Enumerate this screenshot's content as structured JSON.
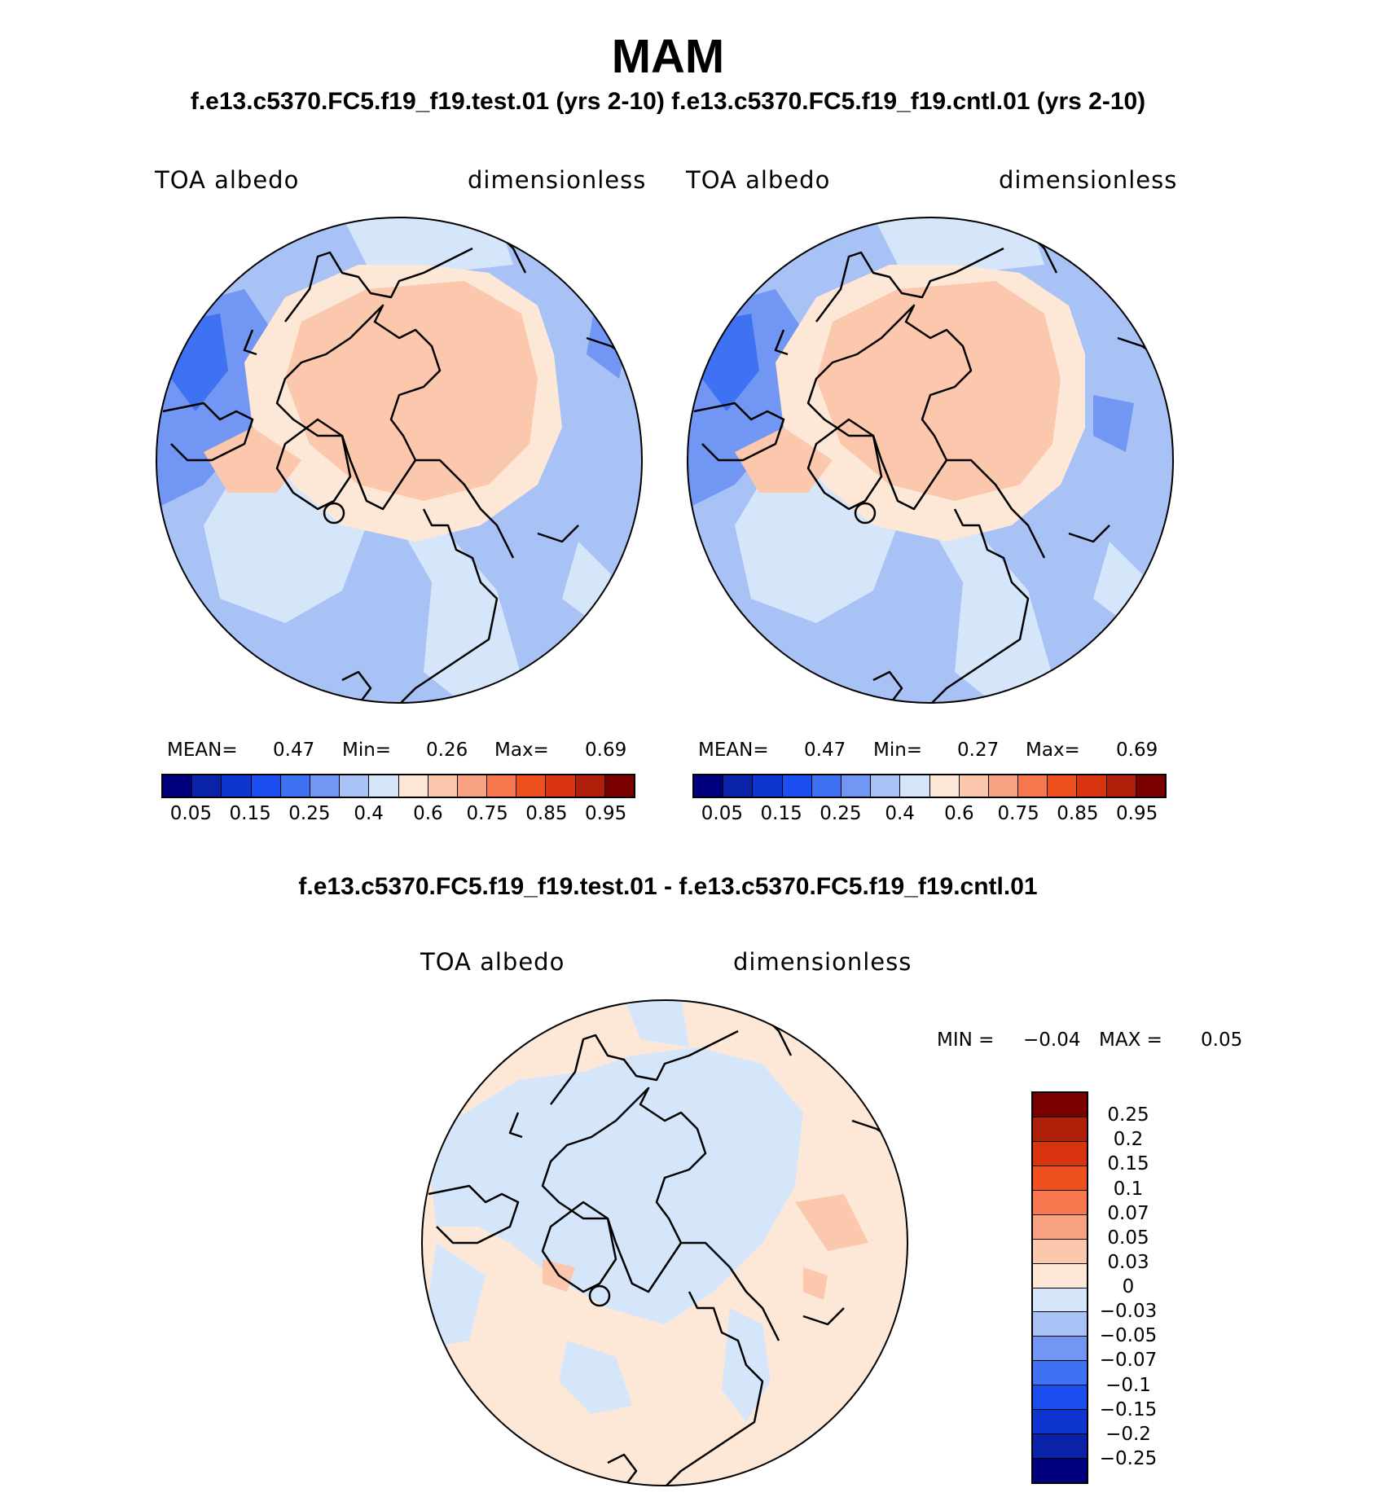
{
  "figure": {
    "season": "MAM",
    "subtitle": "f.e13.c5370.FC5.f19_f19.test.01 (yrs 2-10) f.e13.c5370.FC5.f19_f19.cntl.01 (yrs 2-10)",
    "diff_title": "f.e13.c5370.FC5.f19_f19.test.01 - f.e13.c5370.FC5.f19_f19.cntl.01"
  },
  "panels": [
    {
      "variable": "TOA albedo",
      "units": "dimensionless",
      "mean_label": "MEAN=",
      "mean": "0.47",
      "min_label": "Min=",
      "min": "0.26",
      "max_label": "Max=",
      "max": "0.69"
    },
    {
      "variable": "TOA albedo",
      "units": "dimensionless",
      "mean_label": "MEAN=",
      "mean": "0.47",
      "min_label": "Min=",
      "min": "0.27",
      "max_label": "Max=",
      "max": "0.69"
    }
  ],
  "diff_panel": {
    "variable": "TOA albedo",
    "units": "dimensionless",
    "min_label": "MIN =",
    "min": "−0.04",
    "max_label": "MAX =",
    "max": "0.05"
  },
  "colorbar_main": {
    "ticks": [
      "0.05",
      "0.15",
      "0.25",
      "0.4",
      "0.6",
      "0.75",
      "0.85",
      "0.95"
    ],
    "colors": [
      "#00007f",
      "#0a22a8",
      "#0f35d0",
      "#1a4ef0",
      "#3f72f2",
      "#7196f3",
      "#a8c2f5",
      "#d6e6fa",
      "#fde8d8",
      "#fbc7ad",
      "#f9a283",
      "#f7784f",
      "#f0501e",
      "#d83410",
      "#b01f0a",
      "#7a0000"
    ]
  },
  "colorbar_diff": {
    "ticks": [
      "0.25",
      "0.2",
      "0.15",
      "0.1",
      "0.07",
      "0.05",
      "0.03",
      "0",
      "−0.03",
      "−0.05",
      "−0.07",
      "−0.1",
      "−0.15",
      "−0.2",
      "−0.25"
    ],
    "colors": [
      "#7a0000",
      "#b01f0a",
      "#d83410",
      "#f0501e",
      "#f7784f",
      "#f9a283",
      "#fbc7ad",
      "#fde8d8",
      "#d6e6fa",
      "#a8c2f5",
      "#7196f3",
      "#3f72f2",
      "#1a4ef0",
      "#0f35d0",
      "#0a22a8",
      "#00007f"
    ]
  }
}
